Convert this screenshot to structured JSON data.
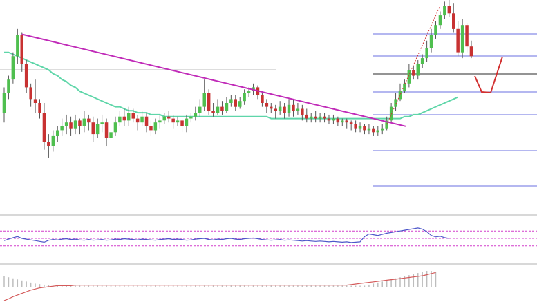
{
  "chart_data": {
    "type": "candlestick",
    "title": "",
    "xlabel": "",
    "ylabel": "",
    "grid": false,
    "legend": "none",
    "price_panel": {
      "ylim": [
        0,
        100
      ],
      "candles": [
        [
          45,
          55,
          40,
          58
        ],
        [
          55,
          62,
          52,
          64
        ],
        [
          62,
          74,
          60,
          76
        ],
        [
          74,
          85,
          70,
          88
        ],
        [
          85,
          70,
          66,
          86
        ],
        [
          70,
          58,
          55,
          72
        ],
        [
          58,
          52,
          48,
          60
        ],
        [
          52,
          50,
          45,
          62
        ],
        [
          50,
          45,
          42,
          52
        ],
        [
          45,
          30,
          26,
          50
        ],
        [
          30,
          28,
          22,
          34
        ],
        [
          28,
          33,
          25,
          36
        ],
        [
          33,
          36,
          30,
          38
        ],
        [
          36,
          38,
          33,
          42
        ],
        [
          38,
          40,
          34,
          44
        ],
        [
          40,
          37,
          33,
          43
        ],
        [
          37,
          41,
          34,
          44
        ],
        [
          41,
          38,
          34,
          42
        ],
        [
          38,
          42,
          35,
          46
        ],
        [
          42,
          40,
          36,
          44
        ],
        [
          40,
          34,
          30,
          43
        ],
        [
          34,
          39,
          32,
          42
        ],
        [
          39,
          40,
          35,
          44
        ],
        [
          40,
          32,
          28,
          42
        ],
        [
          32,
          35,
          30,
          37
        ],
        [
          35,
          40,
          33,
          43
        ],
        [
          40,
          43,
          38,
          46
        ],
        [
          43,
          41,
          38,
          47
        ],
        [
          41,
          45,
          38,
          48
        ],
        [
          45,
          42,
          40,
          47
        ],
        [
          42,
          40,
          36,
          44
        ],
        [
          40,
          43,
          38,
          46
        ],
        [
          43,
          38,
          35,
          45
        ],
        [
          38,
          36,
          33,
          41
        ],
        [
          36,
          40,
          34,
          42
        ],
        [
          40,
          41,
          37,
          44
        ],
        [
          41,
          43,
          39,
          45
        ],
        [
          43,
          42,
          40,
          46
        ],
        [
          42,
          40,
          37,
          44
        ],
        [
          40,
          41,
          38,
          43
        ],
        [
          41,
          38,
          35,
          42
        ],
        [
          38,
          42,
          35,
          44
        ],
        [
          42,
          43,
          40,
          45
        ],
        [
          43,
          45,
          41,
          48
        ],
        [
          45,
          48,
          43,
          52
        ],
        [
          48,
          55,
          46,
          62
        ],
        [
          55,
          46,
          44,
          57
        ],
        [
          46,
          45,
          43,
          50
        ],
        [
          45,
          48,
          44,
          52
        ],
        [
          48,
          46,
          44,
          51
        ],
        [
          46,
          50,
          45,
          53
        ],
        [
          50,
          52,
          48,
          54
        ],
        [
          52,
          48,
          46,
          54
        ],
        [
          48,
          51,
          47,
          53
        ],
        [
          51,
          55,
          49,
          57
        ],
        [
          55,
          56,
          53,
          58
        ],
        [
          56,
          58,
          54,
          60
        ],
        [
          58,
          54,
          52,
          59
        ],
        [
          54,
          50,
          48,
          56
        ],
        [
          50,
          48,
          45,
          52
        ],
        [
          48,
          47,
          45,
          50
        ],
        [
          47,
          46,
          42,
          49
        ],
        [
          46,
          48,
          44,
          51
        ],
        [
          48,
          45,
          42,
          50
        ],
        [
          45,
          49,
          43,
          52
        ],
        [
          49,
          46,
          43,
          52
        ],
        [
          46,
          47,
          44,
          50
        ],
        [
          47,
          44,
          41,
          49
        ],
        [
          44,
          42,
          40,
          47
        ],
        [
          42,
          43,
          40,
          45
        ],
        [
          43,
          42,
          40,
          46
        ],
        [
          42,
          43,
          40,
          45
        ],
        [
          43,
          42,
          40,
          45
        ],
        [
          42,
          41,
          39,
          44
        ],
        [
          41,
          42,
          39,
          44
        ],
        [
          42,
          40,
          38,
          43
        ],
        [
          40,
          41,
          38,
          42
        ],
        [
          41,
          40,
          37,
          42
        ],
        [
          40,
          39,
          36,
          41
        ],
        [
          39,
          37,
          35,
          41
        ],
        [
          37,
          38,
          35,
          40
        ],
        [
          38,
          36,
          34,
          39
        ],
        [
          36,
          37,
          34,
          39
        ],
        [
          37,
          35,
          33,
          38
        ],
        [
          35,
          36,
          33,
          38
        ],
        [
          36,
          37,
          34,
          39
        ],
        [
          37,
          41,
          36,
          43
        ],
        [
          41,
          48,
          40,
          50
        ],
        [
          48,
          52,
          46,
          55
        ],
        [
          52,
          56,
          51,
          60
        ],
        [
          56,
          60,
          55,
          62
        ],
        [
          60,
          67,
          58,
          70
        ],
        [
          67,
          64,
          62,
          69
        ],
        [
          64,
          70,
          62,
          72
        ],
        [
          70,
          73,
          68,
          75
        ],
        [
          73,
          78,
          71,
          82
        ],
        [
          78,
          85,
          76,
          88
        ],
        [
          85,
          90,
          83,
          92
        ],
        [
          90,
          95,
          88,
          97
        ],
        [
          95,
          100,
          93,
          102
        ],
        [
          100,
          96,
          94,
          103
        ],
        [
          96,
          88,
          86,
          101
        ],
        [
          88,
          76,
          74,
          92
        ],
        [
          76,
          90,
          73,
          93
        ],
        [
          90,
          79,
          76,
          91
        ],
        [
          79,
          74,
          73,
          82
        ]
      ],
      "moving_average": [
        76,
        76,
        75,
        74,
        73,
        72,
        71,
        70,
        69,
        68,
        67,
        65,
        64,
        62,
        61,
        59,
        58,
        56,
        55,
        54,
        53,
        52,
        51,
        50,
        49,
        48,
        48,
        47,
        46,
        46,
        45,
        45,
        45,
        44,
        44,
        44,
        43,
        43,
        43,
        43,
        43,
        43,
        43,
        43,
        43,
        43,
        43,
        43,
        43,
        43,
        43,
        43,
        43,
        43,
        43,
        43,
        43,
        43,
        43,
        43,
        42,
        42,
        42,
        42,
        42,
        42,
        42,
        42,
        42,
        42,
        42,
        42,
        42,
        42,
        42,
        42,
        42,
        42,
        42,
        42,
        42,
        42,
        42,
        42,
        42,
        42,
        42,
        42,
        42,
        42,
        43,
        43,
        44,
        44,
        45,
        46,
        47,
        48,
        49,
        50,
        51,
        52,
        53
      ]
    },
    "rsi_panel": {
      "ylim": [
        0,
        100
      ],
      "values": [
        44,
        48,
        52,
        55,
        50,
        48,
        46,
        44,
        42,
        40,
        45,
        47,
        46,
        48,
        49,
        47,
        48,
        46,
        45,
        47,
        45,
        46,
        47,
        45,
        46,
        48,
        47,
        49,
        48,
        47,
        46,
        48,
        47,
        46,
        45,
        47,
        48,
        49,
        47,
        48,
        47,
        45,
        46,
        48,
        49,
        50,
        47,
        46,
        48,
        47,
        49,
        50,
        48,
        47,
        49,
        50,
        51,
        49,
        47,
        46,
        45,
        46,
        47,
        45,
        46,
        45,
        44,
        43,
        44,
        43,
        42,
        43,
        42,
        41,
        42,
        41,
        40,
        41,
        39,
        40,
        41,
        55,
        62,
        60,
        58,
        61,
        64,
        66,
        68,
        70,
        72,
        74,
        76,
        78,
        75,
        68,
        58,
        54,
        56,
        52,
        50
      ]
    },
    "macd_panel": {
      "histogram": [
        20,
        18,
        16,
        14,
        12,
        10,
        8,
        6,
        5,
        4,
        3,
        2,
        2,
        2,
        2,
        2,
        2,
        2,
        2,
        2,
        2,
        2,
        2,
        2,
        2,
        2,
        2,
        2,
        2,
        2,
        2,
        2,
        2,
        2,
        2,
        2,
        2,
        2,
        2,
        2,
        2,
        2,
        2,
        2,
        2,
        2,
        2,
        2,
        2,
        2,
        2,
        2,
        2,
        2,
        2,
        2,
        2,
        2,
        2,
        2,
        2,
        2,
        2,
        2,
        2,
        2,
        2,
        2,
        2,
        2,
        2,
        2,
        2,
        2,
        2,
        2,
        2,
        2,
        2,
        2,
        2,
        2,
        4,
        6,
        8,
        10,
        12,
        14,
        16,
        18,
        20,
        22,
        24,
        26,
        28,
        30,
        30,
        28
      ],
      "signal": [
        -25,
        -22,
        -18,
        -15,
        -12,
        -9,
        -6,
        -4,
        -2,
        -1,
        0,
        1,
        2,
        2,
        2,
        2,
        3,
        3,
        3,
        3,
        3,
        3,
        3,
        3,
        3,
        3,
        3,
        3,
        3,
        3,
        3,
        3,
        3,
        3,
        3,
        3,
        3,
        3,
        3,
        3,
        3,
        3,
        3,
        3,
        3,
        3,
        3,
        3,
        3,
        3,
        3,
        3,
        3,
        3,
        3,
        3,
        3,
        3,
        3,
        3,
        3,
        3,
        3,
        3,
        3,
        3,
        3,
        3,
        3,
        3,
        3,
        3,
        3,
        3,
        3,
        3,
        3,
        3,
        4,
        5,
        6,
        7,
        8,
        9,
        10,
        11,
        12,
        13,
        14,
        15,
        16,
        17,
        18,
        19,
        20,
        22,
        24,
        26
      ]
    },
    "colors": {
      "bull": "#4fbf4f",
      "bear": "#c83232",
      "wick": "#555555",
      "moving_average": "#5fd6a9",
      "trendline": "#c02ab8",
      "fib_lines": "#6a6fe0",
      "current_price_line": "#444444",
      "rsi_line": "#4d56c9",
      "rsi_levels": "#d23fcc",
      "macd_hist": "#bdbdbd",
      "macd_signal": "#d45a5a",
      "projection": "#d23030",
      "projection_dotted": "#d23030"
    }
  }
}
